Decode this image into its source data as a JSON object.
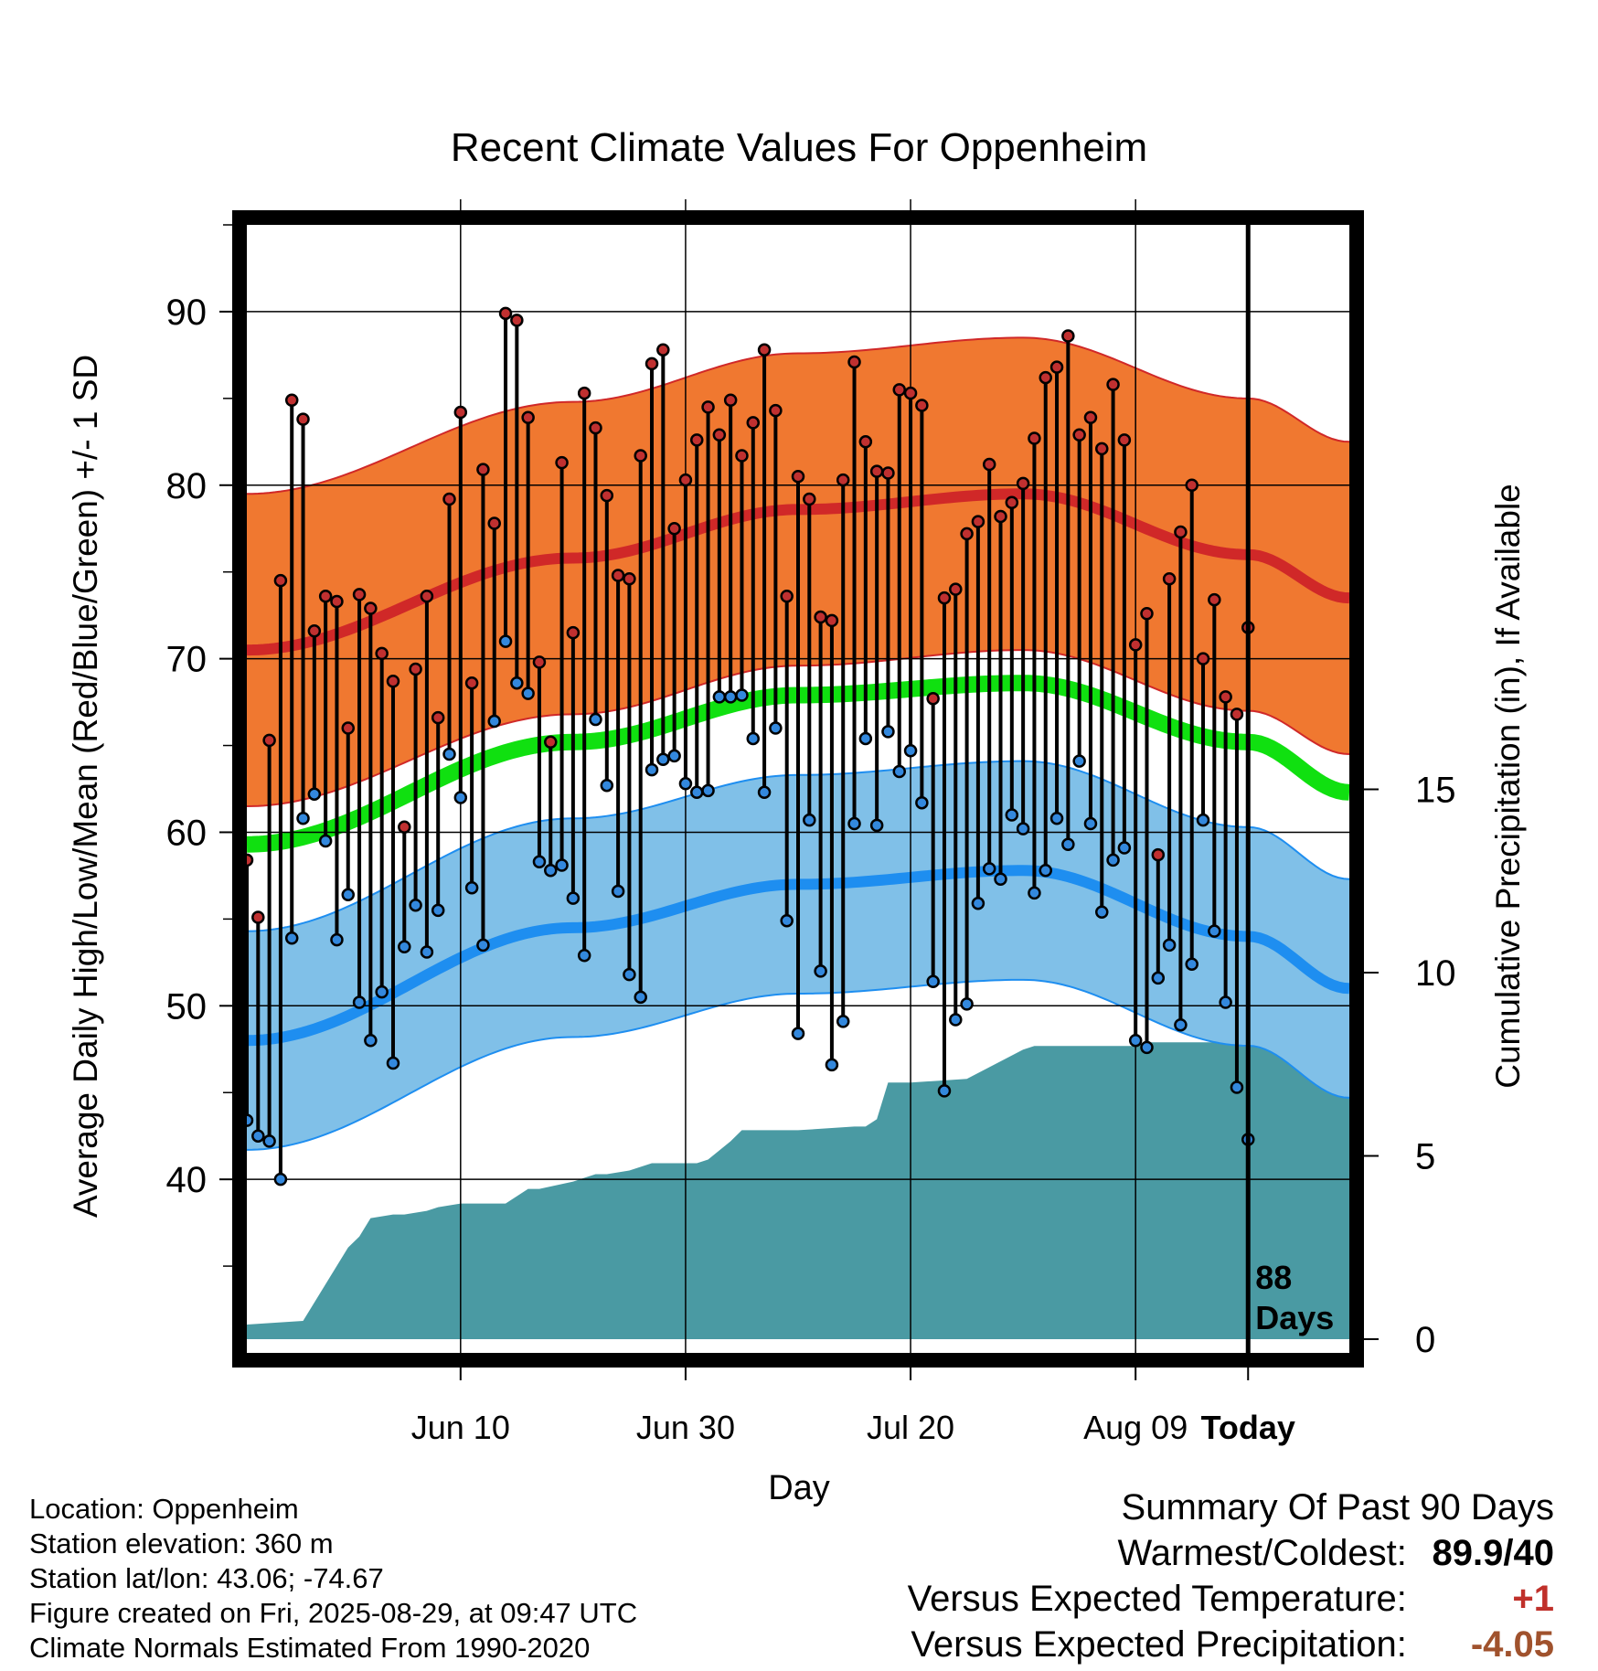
{
  "chart_data": {
    "type": "line",
    "title": "Recent Climate Values For Oppenheim",
    "xlabel": "Day",
    "ylabel": "Average Daily High/Low/Mean (Red/Blue/Green) +/- 1 SD",
    "y2label": "Cumulative Precipitation (in), If Available",
    "x_ticks": [
      "Jun 10",
      "Jun 30",
      "Jul 20",
      "Aug 09",
      "Today"
    ],
    "y_ticks": [
      40,
      50,
      60,
      70,
      80,
      90
    ],
    "y2_ticks": [
      0,
      5,
      10,
      15
    ],
    "ylim": [
      30,
      95
    ],
    "y2lim": [
      0,
      30
    ],
    "day_range": [
      -89,
      9
    ],
    "today_marker": "88\nDays",
    "normals": {
      "high_mean": {
        "days": [
          -89,
          -60,
          -40,
          -20,
          0,
          9
        ],
        "values": [
          70.5,
          75.8,
          78.6,
          79.5,
          76.0,
          73.5
        ]
      },
      "high_sd": 9,
      "low_mean": {
        "days": [
          -89,
          -60,
          -40,
          -20,
          0,
          9
        ],
        "values": [
          48.0,
          54.5,
          57.0,
          57.8,
          54.0,
          51.0
        ]
      },
      "low_sd": 6.3,
      "mean": {
        "days": [
          -89,
          -60,
          -40,
          -20,
          0,
          9
        ],
        "values": [
          59.3,
          65.2,
          67.9,
          68.6,
          65.2,
          62.3
        ]
      }
    },
    "series": [
      {
        "name": "High",
        "color": "#c03030",
        "values": [
          58.4,
          55.1,
          65.3,
          74.5,
          84.9,
          83.8,
          71.6,
          73.6,
          73.3,
          66.0,
          73.7,
          72.9,
          70.3,
          68.7,
          60.3,
          69.4,
          73.6,
          66.6,
          79.2,
          84.2,
          68.6,
          80.9,
          77.8,
          89.9,
          89.5,
          83.9,
          69.8,
          65.2,
          81.3,
          71.5,
          85.3,
          83.3,
          79.4,
          74.8,
          74.6,
          81.7,
          87.0,
          87.8,
          77.5,
          80.3,
          82.6,
          84.5,
          82.9,
          84.9,
          81.7,
          83.6,
          87.8,
          84.3,
          73.6,
          80.5,
          79.2,
          72.4,
          72.2,
          80.3,
          87.1,
          82.5,
          80.8,
          80.7,
          85.5,
          85.3,
          84.6,
          67.7,
          73.5,
          74.0,
          77.2,
          77.9,
          81.2,
          78.2,
          79.0,
          80.1,
          82.7,
          86.2,
          86.8,
          88.6,
          82.9,
          83.9,
          82.1,
          85.8,
          82.6,
          70.8,
          72.6,
          58.7,
          74.6,
          77.3,
          80.0,
          70.0,
          73.4,
          67.8,
          66.8,
          71.8
        ]
      },
      {
        "name": "Low",
        "color": "#3388dd",
        "values": [
          43.4,
          42.5,
          42.2,
          40.0,
          53.9,
          60.8,
          62.2,
          59.5,
          53.8,
          56.4,
          50.2,
          48.0,
          50.8,
          46.7,
          53.4,
          55.8,
          53.1,
          55.5,
          64.5,
          62.0,
          56.8,
          53.5,
          66.4,
          71.0,
          68.6,
          68.0,
          58.3,
          57.8,
          58.1,
          56.2,
          52.9,
          66.5,
          62.7,
          56.6,
          51.8,
          50.5,
          63.6,
          64.2,
          64.4,
          62.8,
          62.3,
          62.4,
          67.8,
          67.8,
          67.9,
          65.4,
          62.3,
          66.0,
          54.9,
          48.4,
          60.7,
          52.0,
          46.6,
          49.1,
          60.5,
          65.4,
          60.4,
          65.8,
          63.5,
          64.7,
          61.7,
          51.4,
          45.1,
          49.2,
          50.1,
          55.9,
          57.9,
          57.3,
          61.0,
          60.2,
          56.5,
          57.8,
          60.8,
          59.3,
          64.1,
          60.5,
          55.4,
          58.4,
          59.1,
          48.0,
          47.6,
          51.6,
          53.5,
          48.9,
          52.4,
          60.7,
          54.3,
          50.2,
          45.3,
          42.3
        ]
      }
    ],
    "precipitation": {
      "days": [
        -89,
        -84,
        -80,
        -79,
        -78,
        -76,
        -75,
        -73,
        -72,
        -70,
        -66,
        -64,
        -63,
        -60,
        -58,
        -57,
        -55,
        -54,
        -53,
        -51,
        -49,
        -48,
        -46,
        -45,
        -43,
        -40,
        -35,
        -34,
        -33,
        -32,
        -30,
        -25,
        -20,
        -19,
        -17,
        -16,
        -12,
        -10,
        -9,
        -8,
        -6,
        -4,
        -3,
        -1,
        0,
        9
      ],
      "values": [
        0.4,
        0.5,
        2.5,
        2.8,
        3.3,
        3.4,
        3.4,
        3.5,
        3.6,
        3.7,
        3.7,
        4.1,
        4.1,
        4.3,
        4.5,
        4.5,
        4.6,
        4.7,
        4.8,
        4.8,
        4.8,
        4.9,
        5.4,
        5.7,
        5.7,
        5.7,
        5.8,
        5.8,
        6.0,
        7.0,
        7.0,
        7.1,
        7.9,
        8.0,
        8.0,
        8.0,
        8.0,
        8.0,
        8.1,
        8.1,
        8.1,
        8.1,
        8.1,
        8.7,
        8.8,
        8.8
      ]
    },
    "colors": {
      "high_band": "#f07830",
      "high_line": "#d02828",
      "low_band": "#80c0e8",
      "low_line": "#1e8ef0",
      "mean_line": "#10e010",
      "precip": "#4a9aa3"
    }
  },
  "footer": {
    "location": "Location: Oppenheim",
    "elevation": "Station elevation: 360 m",
    "latlon": "Station lat/lon: 43.06; -74.67",
    "created": "Figure created on Fri, 2025-08-29, at 09:47 UTC",
    "normals": "Climate Normals Estimated From 1990-2020"
  },
  "summary": {
    "heading": "Summary Of Past 90 Days",
    "warmest_label": "Warmest/Coldest:",
    "warmest_value": "89.9/40",
    "temp_label": "Versus Expected Temperature:",
    "temp_value": "+1",
    "temp_color": "#c0302a",
    "precip_label": "Versus Expected Precipitation:",
    "precip_value": "-4.05",
    "precip_color": "#a0522d"
  }
}
